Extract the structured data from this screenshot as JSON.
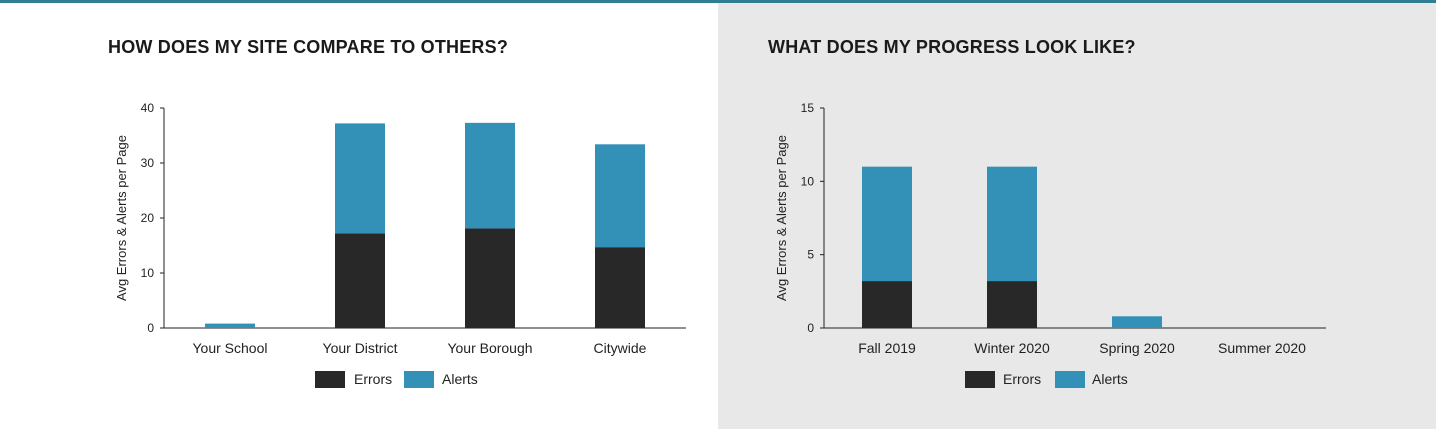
{
  "colors": {
    "errors": "#282828",
    "alerts": "#3390b6",
    "accent_bar": "#2f7f93"
  },
  "chart_data": [
    {
      "type": "bar",
      "stacked": true,
      "title": "HOW DOES MY SITE COMPARE TO OTHERS?",
      "xlabel": "",
      "ylabel": "Avg Errors & Alerts per Page",
      "ylim": [
        0,
        40
      ],
      "yticks": [
        0,
        10,
        20,
        30,
        40
      ],
      "categories": [
        "Your School",
        "Your District",
        "Your Borough",
        "Citywide"
      ],
      "series": [
        {
          "name": "Errors",
          "values": [
            0,
            17.2,
            18.1,
            14.7
          ]
        },
        {
          "name": "Alerts",
          "values": [
            0.8,
            20,
            19.2,
            18.7
          ]
        }
      ],
      "legend": "bottom",
      "grid": false
    },
    {
      "type": "bar",
      "stacked": true,
      "title": "WHAT DOES MY PROGRESS LOOK LIKE?",
      "xlabel": "",
      "ylabel": "Avg Errors & Alerts per Page",
      "ylim": [
        0,
        15
      ],
      "yticks": [
        0,
        5,
        10,
        15
      ],
      "categories": [
        "Fall 2019",
        "Winter 2020",
        "Spring 2020",
        "Summer 2020"
      ],
      "series": [
        {
          "name": "Errors",
          "values": [
            3.2,
            3.2,
            0,
            0
          ]
        },
        {
          "name": "Alerts",
          "values": [
            7.8,
            7.8,
            0.8,
            0
          ]
        }
      ],
      "legend": "bottom",
      "grid": false
    }
  ]
}
